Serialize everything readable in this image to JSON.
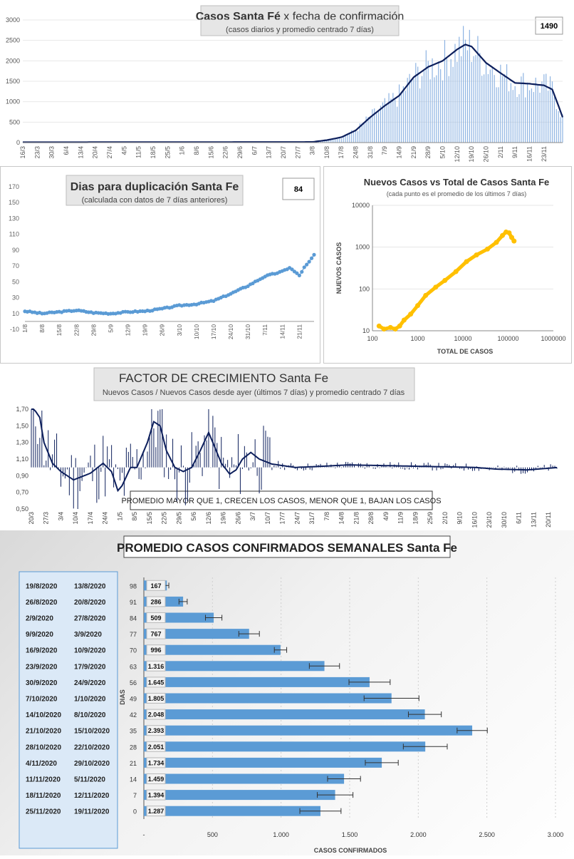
{
  "chart_data": [
    {
      "type": "bar",
      "title_bold": "Casos Santa Fé",
      "title_rest": " x fecha de confirmación",
      "subtitle": "(casos diarios y promedio centrado 7 días)",
      "badge": "1490",
      "ylim": [
        0,
        3000
      ],
      "yticks": [
        "0",
        "500",
        "1000",
        "1500",
        "2000",
        "2500",
        "3000"
      ],
      "xticks": [
        "16/3",
        "23/3",
        "30/3",
        "6/4",
        "13/4",
        "20/4",
        "27/4",
        "4/5",
        "11/5",
        "18/5",
        "25/5",
        "1/6",
        "8/6",
        "15/6",
        "22/6",
        "29/6",
        "6/7",
        "13/7",
        "20/7",
        "27/7",
        "3/8",
        "10/8",
        "17/8",
        "24/8",
        "31/8",
        "7/9",
        "14/9",
        "21/9",
        "28/9",
        "5/10",
        "12/10",
        "19/10",
        "26/10",
        "2/11",
        "9/11",
        "16/11",
        "23/11"
      ],
      "avg_anchors": [
        [
          0,
          8
        ],
        [
          140,
          15
        ],
        [
          147,
          60
        ],
        [
          154,
          130
        ],
        [
          161,
          300
        ],
        [
          168,
          620
        ],
        [
          175,
          900
        ],
        [
          182,
          1150
        ],
        [
          189,
          1600
        ],
        [
          196,
          1850
        ],
        [
          203,
          2000
        ],
        [
          210,
          2280
        ],
        [
          214,
          2400
        ],
        [
          217,
          2350
        ],
        [
          224,
          1950
        ],
        [
          231,
          1700
        ],
        [
          238,
          1460
        ],
        [
          245,
          1440
        ],
        [
          252,
          1400
        ],
        [
          256,
          1300
        ],
        [
          259,
          900
        ],
        [
          261,
          620
        ]
      ],
      "series": [
        {
          "name": "casos diarios",
          "color": "#8db3e2"
        },
        {
          "name": "promedio centrado 7 días",
          "color": "#0d1f5c"
        }
      ]
    },
    {
      "type": "line",
      "title": "Dias para duplicación Santa Fe",
      "subtitle": "(calculada con datos de 7 días anteriores)",
      "badge": "84",
      "ylim": [
        -10,
        170
      ],
      "yticks": [
        "-10",
        "10",
        "30",
        "50",
        "70",
        "90",
        "110",
        "130",
        "150",
        "170"
      ],
      "xticks": [
        "1/8",
        "8/8",
        "15/8",
        "22/8",
        "29/8",
        "5/9",
        "12/9",
        "19/9",
        "26/9",
        "3/10",
        "10/10",
        "17/10",
        "24/10",
        "31/10",
        "7/11",
        "14/11",
        "21/11"
      ],
      "anchors": [
        [
          0,
          13
        ],
        [
          7,
          10
        ],
        [
          14,
          12
        ],
        [
          21,
          14
        ],
        [
          28,
          11
        ],
        [
          35,
          10
        ],
        [
          42,
          12
        ],
        [
          49,
          13
        ],
        [
          56,
          16
        ],
        [
          63,
          20
        ],
        [
          70,
          22
        ],
        [
          77,
          26
        ],
        [
          84,
          35
        ],
        [
          91,
          45
        ],
        [
          98,
          57
        ],
        [
          105,
          63
        ],
        [
          108,
          68
        ],
        [
          110,
          63
        ],
        [
          112,
          58
        ],
        [
          114,
          68
        ],
        [
          116,
          75
        ],
        [
          118,
          84
        ]
      ],
      "color": "#5b9bd5"
    },
    {
      "type": "scatter",
      "title": "Nuevos Casos vs Total de Casos Santa Fe",
      "subtitle": "(cada punto es el promedio de los últimos 7 días)",
      "xlabel": "TOTAL DE CASOS",
      "ylabel": "NUEVOS CASOS",
      "xscale": "log",
      "yscale": "log",
      "xlim": [
        100,
        1000000
      ],
      "ylim": [
        10,
        10000
      ],
      "xticks": [
        "100",
        "1000",
        "10000",
        "100000",
        "1000000"
      ],
      "yticks": [
        "10",
        "100",
        "1000",
        "10000"
      ],
      "color": "#ffc000",
      "points": [
        [
          140,
          13
        ],
        [
          180,
          11
        ],
        [
          250,
          12
        ],
        [
          320,
          11
        ],
        [
          400,
          13
        ],
        [
          500,
          18
        ],
        [
          700,
          25
        ],
        [
          1000,
          40
        ],
        [
          1500,
          70
        ],
        [
          2500,
          110
        ],
        [
          4000,
          160
        ],
        [
          7000,
          260
        ],
        [
          12000,
          450
        ],
        [
          20000,
          650
        ],
        [
          35000,
          900
        ],
        [
          55000,
          1300
        ],
        [
          75000,
          1900
        ],
        [
          90000,
          2300
        ],
        [
          105000,
          2200
        ],
        [
          120000,
          1700
        ],
        [
          135000,
          1400
        ]
      ]
    },
    {
      "type": "line",
      "title": "FACTOR DE CRECIMIENTO Santa Fe",
      "subtitle": "Nuevos Casos  / Nuevos Casos desde ayer (últimos 7 días) y promedio  centrado 7 días",
      "annotation": "PROMEDIO MAYOR QUE 1, CRECEN LOS CASOS, MENOR QUE 1, BAJAN LOS CASOS",
      "ylim": [
        0.5,
        1.7
      ],
      "yticks": [
        "0,50",
        "0,70",
        "0,90",
        "1,10",
        "1,30",
        "1,50",
        "1,70"
      ],
      "xticks": [
        "20/3",
        "27/3",
        "3/4",
        "10/4",
        "17/4",
        "24/4",
        "1/5",
        "8/5",
        "15/5",
        "22/5",
        "29/5",
        "5/6",
        "12/6",
        "19/6",
        "26/6",
        "3/7",
        "10/7",
        "17/7",
        "24/7",
        "31/7",
        "7/8",
        "14/8",
        "21/8",
        "28/8",
        "4/9",
        "11/9",
        "18/9",
        "25/9",
        "2/10",
        "9/10",
        "16/10",
        "23/10",
        "30/10",
        "6/11",
        "13/11",
        "20/11"
      ],
      "avg_anchors": [
        [
          0,
          1.75
        ],
        [
          4,
          1.6
        ],
        [
          6,
          1.3
        ],
        [
          10,
          1.05
        ],
        [
          14,
          0.95
        ],
        [
          20,
          0.85
        ],
        [
          28,
          0.93
        ],
        [
          34,
          1.05
        ],
        [
          38,
          0.95
        ],
        [
          41,
          0.72
        ],
        [
          43,
          0.78
        ],
        [
          47,
          1.0
        ],
        [
          50,
          1.0
        ],
        [
          55,
          1.3
        ],
        [
          58,
          1.55
        ],
        [
          61,
          1.5
        ],
        [
          64,
          1.2
        ],
        [
          68,
          1.0
        ],
        [
          72,
          0.95
        ],
        [
          76,
          1.0
        ],
        [
          80,
          1.2
        ],
        [
          84,
          1.42
        ],
        [
          86,
          1.3
        ],
        [
          90,
          1.05
        ],
        [
          94,
          0.92
        ],
        [
          97,
          0.97
        ],
        [
          100,
          1.1
        ],
        [
          104,
          1.18
        ],
        [
          108,
          1.1
        ],
        [
          114,
          1.04
        ],
        [
          125,
          1.0
        ],
        [
          135,
          1.01
        ],
        [
          150,
          1.03
        ],
        [
          170,
          1.02
        ],
        [
          190,
          1.01
        ],
        [
          210,
          1.0
        ],
        [
          220,
          0.98
        ],
        [
          235,
          0.97
        ],
        [
          250,
          1.0
        ],
        [
          258,
          0.95
        ],
        [
          261,
          0.82
        ],
        [
          262,
          0.79
        ]
      ],
      "color": "#0d1f5c"
    },
    {
      "type": "bar",
      "orientation": "horizontal",
      "title": "PROMEDIO CASOS CONFIRMADOS SEMANALES Santa Fe",
      "xlabel": "CASOS CONFIRMADOS",
      "ylabel": "DIAS",
      "xlim": [
        0,
        3000
      ],
      "xticks": [
        "-",
        "500",
        "1.000",
        "1.500",
        "2.000",
        "2.500",
        "3.000"
      ],
      "color": "#5b9bd5",
      "rows": [
        {
          "end": "19/8/2020",
          "start": "13/8/2020",
          "dias": "98",
          "label": "167",
          "value": 167,
          "err": 15
        },
        {
          "end": "26/8/2020",
          "start": "20/8/2020",
          "dias": "91",
          "label": "286",
          "value": 286,
          "err": 30
        },
        {
          "end": "2/9/2020",
          "start": "27/8/2020",
          "dias": "84",
          "label": "509",
          "value": 509,
          "err": 60
        },
        {
          "end": "9/9/2020",
          "start": "3/9/2020",
          "dias": "77",
          "label": "767",
          "value": 767,
          "err": 75
        },
        {
          "end": "16/9/2020",
          "start": "10/9/2020",
          "dias": "70",
          "label": "996",
          "value": 996,
          "err": 45
        },
        {
          "end": "23/9/2020",
          "start": "17/9/2020",
          "dias": "63",
          "label": "1.316",
          "value": 1316,
          "err": 110
        },
        {
          "end": "30/9/2020",
          "start": "24/9/2020",
          "dias": "56",
          "label": "1.645",
          "value": 1645,
          "err": 150
        },
        {
          "end": "7/10/2020",
          "start": "1/10/2020",
          "dias": "49",
          "label": "1.805",
          "value": 1805,
          "err": 200
        },
        {
          "end": "14/10/2020",
          "start": "8/10/2020",
          "dias": "42",
          "label": "2.048",
          "value": 2048,
          "err": 120
        },
        {
          "end": "21/10/2020",
          "start": "15/10/2020",
          "dias": "35",
          "label": "2.393",
          "value": 2393,
          "err": 110
        },
        {
          "end": "28/10/2020",
          "start": "22/10/2020",
          "dias": "28",
          "label": "2.051",
          "value": 2051,
          "err": 160
        },
        {
          "end": "4/11/2020",
          "start": "29/10/2020",
          "dias": "21",
          "label": "1.734",
          "value": 1734,
          "err": 120
        },
        {
          "end": "11/11/2020",
          "start": "5/11/2020",
          "dias": "14",
          "label": "1.459",
          "value": 1459,
          "err": 120
        },
        {
          "end": "18/11/2020",
          "start": "12/11/2020",
          "dias": "7",
          "label": "1.394",
          "value": 1394,
          "err": 130
        },
        {
          "end": "25/11/2020",
          "start": "19/11/2020",
          "dias": "0",
          "label": "1.287",
          "value": 1287,
          "err": 150
        }
      ]
    }
  ]
}
